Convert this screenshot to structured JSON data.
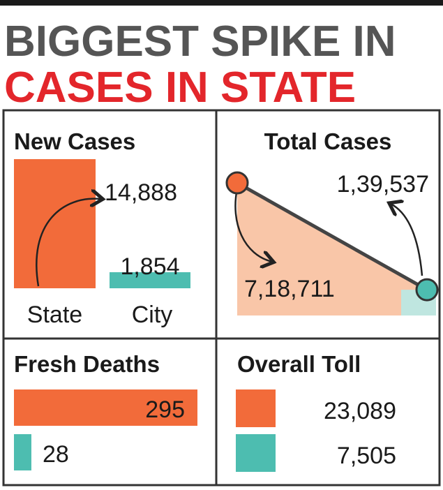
{
  "title": [
    "BIGGEST SPIKE IN",
    "CASES IN STATE"
  ],
  "chart_data": [
    {
      "type": "bar",
      "title": "New Cases",
      "categories": [
        "State",
        "City"
      ],
      "values": [
        14888,
        1854
      ],
      "value_labels": [
        "14,888",
        "1,854"
      ],
      "colors": [
        "#f26b3a",
        "#4dbdb0"
      ]
    },
    {
      "type": "line",
      "title": "Total Cases",
      "categories": [
        null,
        null
      ],
      "values": [
        718711,
        139537
      ],
      "value_labels": [
        "7,18,711",
        "1,39,537"
      ],
      "colors": [
        "#f26b3a",
        "#4dbdb0"
      ]
    },
    {
      "type": "hbar",
      "title": "Fresh Deaths",
      "values": [
        295,
        28
      ],
      "colors": [
        "#f26b3a",
        "#4dbdb0"
      ]
    },
    {
      "type": "key",
      "title": "Overall Toll",
      "values": [
        23089,
        7505
      ],
      "value_labels": [
        "23,089",
        "7,505"
      ],
      "colors": [
        "#f26b3a",
        "#4dbdb0"
      ]
    }
  ]
}
